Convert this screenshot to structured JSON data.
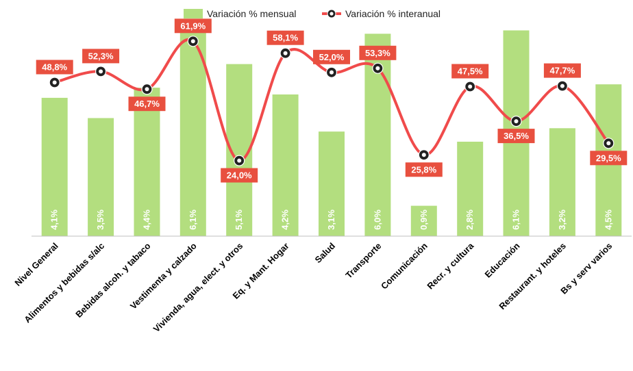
{
  "chart_data": {
    "type": "bar",
    "categories": [
      "Nivel General",
      "Alimentos y bebidas s/alc",
      "Bebidas alcoh. y tabaco",
      "Vestimenta y calzado",
      "Vivienda, agua, elect. y otros",
      "Eq. y Mant. Hogar",
      "Salud",
      "Transporte",
      "Comunicación",
      "Recr. y cultura",
      "Educación",
      "Restaurant. y hoteles",
      "Bs y serv varios"
    ],
    "series": [
      {
        "name": "Variación % mensual",
        "type": "bar",
        "axis": "left",
        "color": "#b3de7f",
        "values": [
          4.1,
          3.5,
          4.4,
          6.1,
          5.1,
          4.2,
          3.1,
          6.0,
          0.9,
          2.8,
          6.1,
          3.2,
          4.5
        ],
        "labels": [
          "4,1%",
          "3,5%",
          "4,4%",
          "6,1%",
          "5,1%",
          "4,2%",
          "3,1%",
          "6,0%",
          "0,9%",
          "2,8%",
          "6,1%",
          "3,2%",
          "4,5%"
        ]
      },
      {
        "name": "Variación % interanual",
        "type": "line",
        "axis": "right",
        "color": "#f04b4b",
        "values": [
          48.8,
          52.3,
          46.7,
          61.9,
          24.0,
          58.1,
          52.0,
          53.3,
          25.8,
          47.5,
          36.5,
          47.7,
          29.5
        ],
        "labels": [
          "48,8%",
          "52,3%",
          "46,7%",
          "61,9%",
          "24,0%",
          "58,1%",
          "52,0%",
          "53,3%",
          "25,8%",
          "47,5%",
          "36,5%",
          "47,7%",
          "29,5%"
        ],
        "label_positions": [
          "above",
          "above",
          "below",
          "above",
          "below",
          "above",
          "above",
          "above",
          "below",
          "above",
          "below",
          "above",
          "below"
        ]
      }
    ],
    "ylim_left": [
      0,
      7
    ],
    "ylim_right": [
      0,
      75
    ],
    "legend_position": "top-center",
    "grid": false
  }
}
